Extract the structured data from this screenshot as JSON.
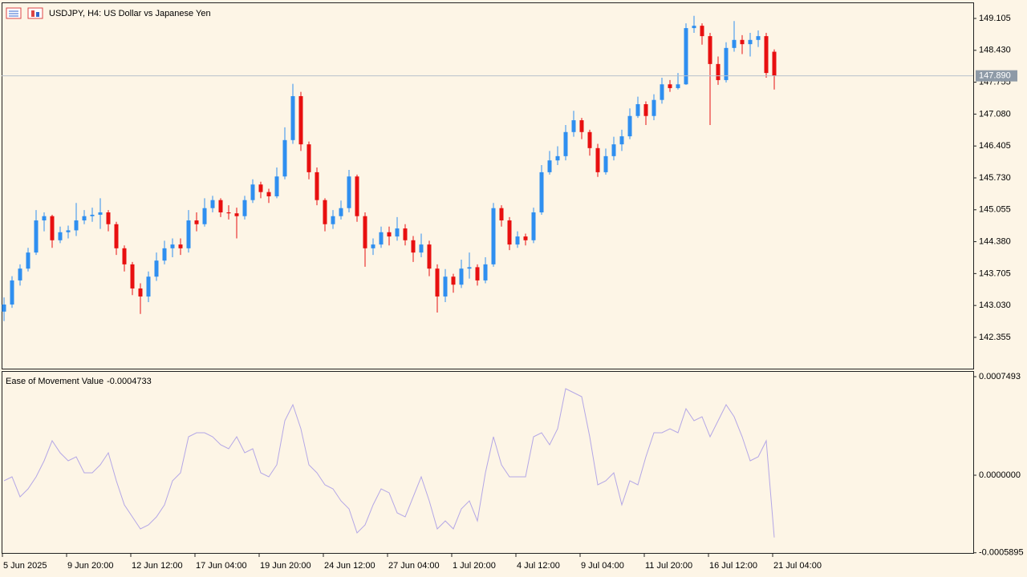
{
  "chart_data": [
    {
      "type": "candlestick",
      "title": "USDJPY, H4:  US Dollar vs Japanese Yen",
      "up_color": "#2f8ff0",
      "down_color": "#e81010",
      "grid": false,
      "ylim": [
        141.693,
        149.444
      ],
      "yticks": [
        149.105,
        {
          "value": 148.43,
          "label": "148.430"
        },
        147.755,
        {
          "value": 147.08,
          "label": "147.080"
        },
        146.405,
        {
          "value": 145.73,
          "label": "145.730"
        },
        145.055,
        {
          "value": 144.38,
          "label": "144.380"
        },
        143.705,
        {
          "value": 143.03,
          "label": "143.030"
        },
        142.355
      ],
      "price_line": {
        "value": 147.89,
        "label": "147.890"
      },
      "price_line_color": "#b7c0cc",
      "categories": [
        "5 Jun 2025",
        null,
        null,
        null,
        null,
        null,
        null,
        null,
        "9 Jun 20:00",
        null,
        null,
        null,
        null,
        null,
        null,
        null,
        "12 Jun 12:00",
        null,
        null,
        null,
        null,
        null,
        null,
        null,
        "17 Jun 04:00",
        null,
        null,
        null,
        null,
        null,
        null,
        null,
        "19 Jun 20:00",
        null,
        null,
        null,
        null,
        null,
        null,
        null,
        "24 Jun 12:00",
        null,
        null,
        null,
        null,
        null,
        null,
        null,
        "27 Jun 04:00",
        null,
        null,
        null,
        null,
        null,
        null,
        null,
        "1 Jul 20:00",
        null,
        null,
        null,
        null,
        null,
        null,
        null,
        "4 Jul 12:00",
        null,
        null,
        null,
        null,
        null,
        null,
        null,
        "9 Jul 04:00",
        null,
        null,
        null,
        null,
        null,
        null,
        null,
        "11 Jul 20:00",
        null,
        null,
        null,
        null,
        null,
        null,
        null,
        "16 Jul 12:00",
        null,
        null,
        null,
        null,
        null,
        null,
        null,
        "21 Jul 04:00"
      ],
      "open": [
        142.9,
        143.05,
        143.56,
        143.81,
        144.15,
        144.83,
        144.92,
        144.41,
        144.58,
        144.62,
        144.83,
        144.92,
        144.95,
        145.0,
        144.75,
        144.24,
        143.9,
        143.39,
        143.22,
        143.64,
        143.98,
        144.24,
        144.32,
        144.24,
        144.83,
        144.75,
        145.09,
        145.26,
        145.0,
        144.98,
        144.92,
        145.26,
        145.59,
        145.43,
        145.34,
        145.76,
        146.53,
        147.46,
        146.44,
        145.85,
        145.26,
        144.75,
        144.92,
        145.09,
        145.76,
        144.92,
        144.24,
        144.32,
        144.58,
        144.49,
        144.66,
        144.41,
        144.15,
        144.32,
        143.81,
        143.22,
        143.64,
        143.47,
        143.81,
        143.84,
        143.56,
        143.9,
        145.09,
        144.83,
        144.32,
        144.49,
        144.41,
        145.0,
        145.85,
        146.1,
        146.19,
        146.7,
        146.95,
        146.7,
        146.36,
        145.85,
        146.19,
        146.44,
        146.61,
        147.04,
        147.29,
        147.04,
        147.38,
        147.71,
        147.63,
        147.71,
        148.9,
        148.95,
        148.73,
        148.14,
        147.8,
        148.48,
        148.65,
        148.56,
        148.65,
        148.73,
        148.4
      ],
      "high": [
        143.2,
        143.65,
        143.9,
        144.25,
        145.05,
        145.0,
        144.95,
        144.7,
        144.72,
        145.2,
        145.05,
        145.1,
        145.3,
        145.05,
        144.8,
        144.3,
        143.95,
        143.5,
        143.75,
        144.15,
        144.4,
        144.45,
        144.45,
        145.05,
        145.0,
        145.3,
        145.35,
        145.3,
        145.15,
        145.1,
        145.35,
        145.7,
        145.65,
        145.5,
        145.95,
        146.8,
        147.72,
        147.55,
        146.5,
        145.95,
        145.3,
        145.05,
        145.25,
        145.9,
        145.8,
        145.0,
        144.45,
        144.7,
        144.7,
        144.9,
        144.75,
        144.5,
        144.55,
        144.4,
        143.9,
        143.8,
        143.7,
        144.0,
        144.15,
        143.9,
        144.05,
        145.2,
        145.15,
        144.9,
        144.6,
        144.55,
        145.1,
        146.0,
        146.3,
        146.4,
        146.85,
        147.15,
        147.0,
        146.75,
        146.45,
        146.35,
        146.6,
        146.75,
        147.2,
        147.45,
        147.35,
        147.5,
        147.85,
        147.8,
        147.95,
        149.0,
        149.16,
        149.0,
        148.8,
        148.3,
        148.6,
        149.05,
        148.75,
        148.8,
        148.85,
        148.8,
        148.45
      ],
      "low": [
        142.7,
        142.98,
        143.45,
        143.75,
        144.1,
        144.6,
        144.25,
        144.35,
        144.45,
        144.5,
        144.75,
        144.8,
        144.65,
        144.6,
        144.1,
        143.75,
        143.25,
        142.85,
        143.1,
        143.55,
        143.9,
        144.05,
        144.1,
        144.15,
        144.6,
        144.7,
        145.0,
        144.9,
        144.85,
        144.45,
        144.85,
        145.2,
        145.3,
        145.2,
        145.3,
        145.7,
        146.45,
        146.3,
        145.7,
        145.15,
        144.6,
        144.65,
        144.85,
        145.0,
        144.8,
        143.85,
        144.1,
        144.25,
        144.3,
        144.4,
        144.3,
        143.95,
        144.05,
        143.65,
        142.88,
        143.1,
        143.3,
        143.4,
        143.6,
        143.45,
        143.5,
        143.85,
        144.7,
        144.2,
        144.25,
        144.3,
        144.35,
        144.95,
        145.8,
        146.0,
        146.1,
        146.6,
        146.55,
        146.2,
        145.75,
        145.8,
        146.1,
        146.3,
        146.55,
        147.0,
        146.85,
        146.95,
        147.3,
        147.55,
        147.6,
        147.7,
        148.8,
        148.55,
        146.85,
        147.7,
        147.75,
        148.4,
        148.35,
        148.3,
        148.5,
        147.85,
        147.6
      ],
      "close": [
        143.05,
        143.56,
        143.81,
        144.15,
        144.83,
        144.92,
        144.41,
        144.58,
        144.62,
        144.83,
        144.92,
        144.95,
        145.0,
        144.75,
        144.24,
        143.9,
        143.39,
        143.22,
        143.64,
        143.98,
        144.24,
        144.32,
        144.24,
        144.83,
        144.75,
        145.09,
        145.26,
        145.0,
        144.98,
        144.92,
        145.26,
        145.59,
        145.43,
        145.34,
        145.76,
        146.53,
        147.46,
        146.44,
        145.85,
        145.26,
        144.75,
        144.92,
        145.09,
        145.76,
        144.92,
        144.24,
        144.32,
        144.58,
        144.49,
        144.66,
        144.41,
        144.15,
        144.32,
        143.81,
        143.22,
        143.64,
        143.47,
        143.81,
        143.84,
        143.56,
        143.9,
        145.09,
        144.83,
        144.32,
        144.49,
        144.41,
        145.0,
        145.85,
        146.1,
        146.19,
        146.7,
        146.95,
        146.7,
        146.36,
        145.85,
        146.19,
        146.44,
        146.61,
        147.04,
        147.29,
        147.04,
        147.38,
        147.71,
        147.63,
        147.71,
        148.9,
        148.95,
        148.73,
        148.14,
        147.8,
        148.48,
        148.65,
        148.56,
        148.65,
        148.73,
        147.95,
        147.89
      ]
    },
    {
      "type": "line",
      "title": "Ease of Movement Value",
      "color": "#b4a7e6",
      "ylim": [
        -0.000591,
        0.000792
      ],
      "yticks": [
        0.0007493,
        {
          "value": 0,
          "label": "0.0000000"
        },
        -0.0005895
      ],
      "values": [
        -4.26e-05,
        -1.22e-05,
        -0.0001645,
        -0.0001036,
        -1.22e-05,
        0.0001097,
        0.000262,
        0.0001706,
        0.0001097,
        0.0001401,
        1.83e-05,
        1.83e-05,
        7.92e-05,
        0.0001706,
        -4.26e-05,
        -0.0002254,
        -0.0003168,
        -0.0004082,
        -0.0003777,
        -0.0003168,
        -0.0002254,
        -4.26e-05,
        1.83e-05,
        0.0002924,
        0.0003229,
        0.0003229,
        0.0002924,
        0.0002315,
        0.000201,
        0.0002924,
        0.0001706,
        0.000201,
        1.83e-05,
        -1.22e-05,
        7.92e-05,
        0.0004143,
        0.0005361,
        0.0003533,
        7.92e-05,
        1.83e-05,
        -7.31e-05,
        -0.0001036,
        -0.0001949,
        -0.0002559,
        -0.0004386,
        -0.0003777,
        -0.0002254,
        -0.0001036,
        -0.000134,
        -0.0002863,
        -0.0003168,
        -0.0001645,
        -1.22e-05,
        -0.0001949,
        -0.0004082,
        -0.0003472,
        -0.0004082,
        -0.0002559,
        -0.0001949,
        -0.0003472,
        1.83e-05,
        0.0002924,
        7.92e-05,
        -1.22e-05,
        -1.22e-05,
        -1.22e-05,
        0.0002924,
        0.0003229,
        0.0002315,
        0.0003533,
        0.0006579,
        0.0006275,
        0.000597,
        0.0002924,
        -7.31e-05,
        -4.26e-05,
        1.83e-05,
        -0.0002254,
        -4.26e-05,
        -7.31e-05,
        0.0001401,
        0.0003229,
        0.0003229,
        0.0003533,
        0.0003229,
        0.0005056,
        0.0004143,
        0.0004447,
        0.0002924,
        0.0004143,
        0.0005361,
        0.0004447,
        0.0002924,
        0.0001097,
        0.0001401,
        0.000262,
        -0.0004733
      ]
    }
  ]
}
